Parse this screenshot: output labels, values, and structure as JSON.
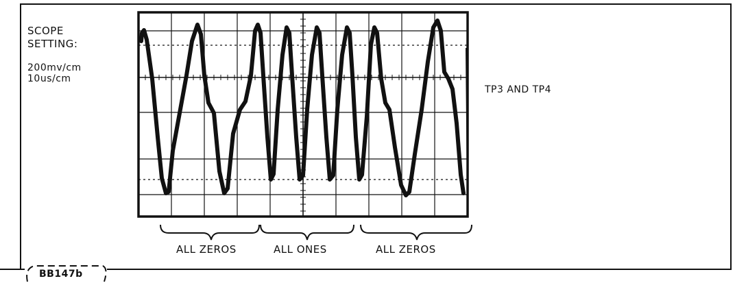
{
  "scope_setting": {
    "heading_line1": "SCOPE",
    "heading_line2": "SETTING:",
    "volts_per_div": "200mv/cm",
    "time_per_div": "10us/cm"
  },
  "test_points": "TP3 AND TP4",
  "regions": [
    {
      "label": "ALL ZEROS"
    },
    {
      "label": "ALL ONES"
    },
    {
      "label": "ALL ZEROS"
    }
  ],
  "figure_id": "BB147b",
  "colors": {
    "ink": "#111111",
    "background": "#ffffff"
  }
}
